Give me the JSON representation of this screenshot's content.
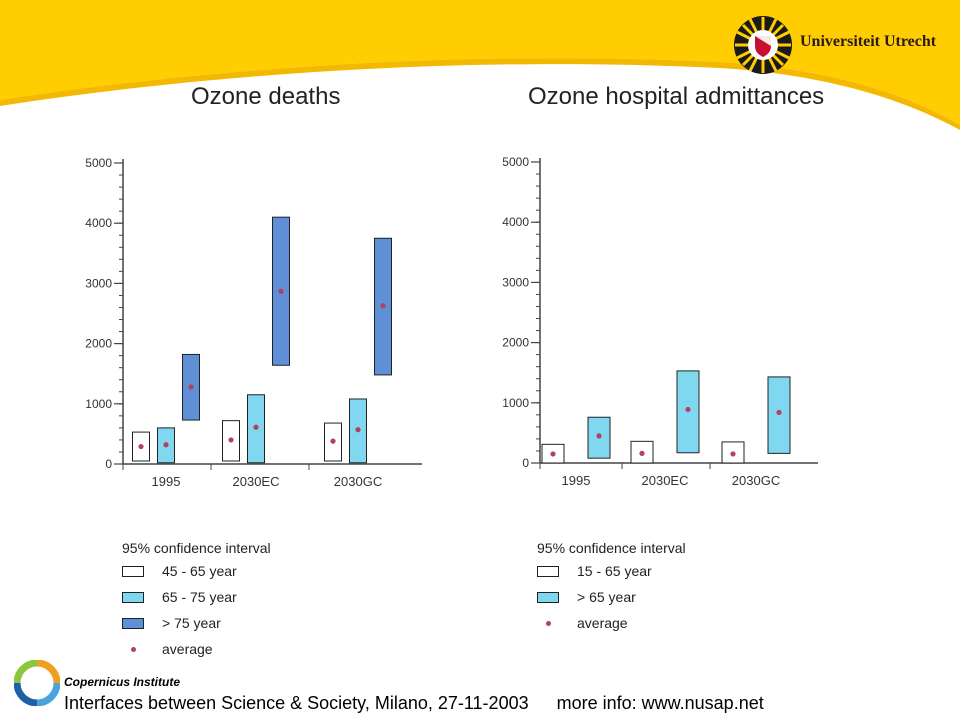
{
  "header": {
    "university_name": "Universiteit Utrecht"
  },
  "chart_data": [
    {
      "type": "bar",
      "title": "Ozone deaths",
      "categories": [
        "1995",
        "2030EC",
        "2030GC"
      ],
      "ylim": [
        0,
        5000
      ],
      "yticks": [
        0,
        1000,
        2000,
        3000,
        4000,
        5000
      ],
      "legend_title": "95% confidence interval",
      "average_label": "average",
      "series": [
        {
          "name": "45 - 65 year",
          "color": "#ffffff",
          "low": [
            50,
            50,
            50
          ],
          "high": [
            530,
            720,
            680
          ],
          "average": [
            290,
            400,
            380
          ]
        },
        {
          "name": "65 - 75 year",
          "color": "#7fd8f0",
          "low": [
            20,
            20,
            20
          ],
          "high": [
            600,
            1150,
            1080
          ],
          "average": [
            320,
            610,
            570
          ]
        },
        {
          "name": "> 75 year",
          "color": "#5f8fd6",
          "low": [
            730,
            1640,
            1480
          ],
          "high": [
            1820,
            4100,
            3750
          ],
          "average": [
            1280,
            2870,
            2630
          ]
        }
      ]
    },
    {
      "type": "bar",
      "title": "Ozone hospital admittances",
      "categories": [
        "1995",
        "2030EC",
        "2030GC"
      ],
      "ylim": [
        0,
        5000
      ],
      "yticks": [
        0,
        1000,
        2000,
        3000,
        4000,
        5000
      ],
      "legend_title": "95% confidence interval",
      "average_label": "average",
      "series": [
        {
          "name": "15 - 65 year",
          "color": "#ffffff",
          "low": [
            0,
            0,
            0
          ],
          "high": [
            310,
            360,
            350
          ],
          "average": [
            150,
            160,
            150
          ]
        },
        {
          "name": "> 65 year",
          "color": "#7fd8f0",
          "low": [
            80,
            170,
            160
          ],
          "high": [
            760,
            1530,
            1430
          ],
          "average": [
            450,
            890,
            840
          ]
        }
      ]
    }
  ],
  "footer": {
    "institute": "Copernicus Institute",
    "event": "Interfaces between Science & Society, Milano, 27-11-2003",
    "info": "more info: www.nusap.net"
  }
}
